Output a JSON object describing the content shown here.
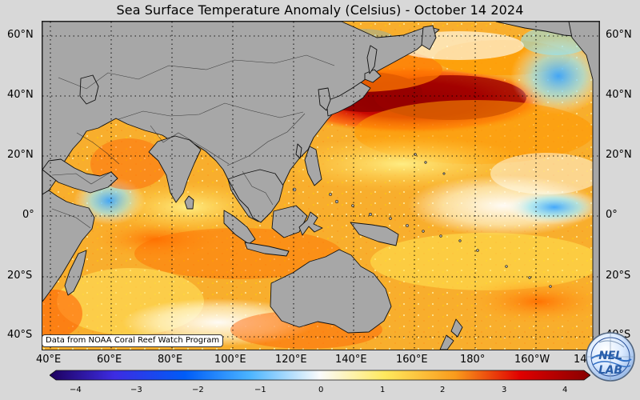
{
  "title": "Sea Surface Temperature Anomaly (Celsius) - October 14 2024",
  "map": {
    "latitude_labels": [
      "60°N",
      "40°N",
      "20°N",
      "0°",
      "20°S",
      "40°S"
    ],
    "longitude_labels": [
      "40°E",
      "60°E",
      "80°E",
      "100°E",
      "120°E",
      "140°E",
      "160°E",
      "180°",
      "160°W",
      "140°W"
    ],
    "colors": {
      "land": "#a7a7a7",
      "coastline": "#111111",
      "grid": "#000000",
      "warm_anomaly": "#ef6d12",
      "strong_warm_anomaly": "#8f0000",
      "cool_anomaly": "#4ab6ff"
    }
  },
  "credit": "Data from NOAA Coral Reef Watch Program",
  "colorbar": {
    "ticks": [
      "−4",
      "−3",
      "−2",
      "−1",
      "0",
      "1",
      "2",
      "3",
      "4"
    ],
    "colors": [
      "#1d005d",
      "#3d2ce2",
      "#005cf7",
      "#4bb4ff",
      "#fbfbfb",
      "#ffe95e",
      "#f99b1c",
      "#e00000",
      "#870000"
    ]
  },
  "logo": {
    "text": "NEL LAB",
    "name": "lab-logo"
  }
}
